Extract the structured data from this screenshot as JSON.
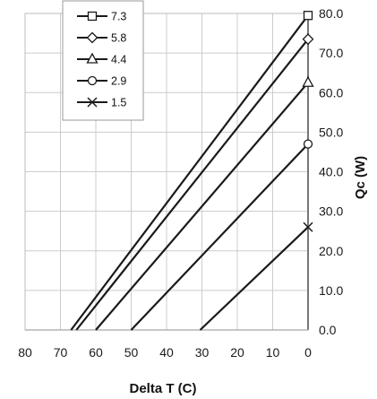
{
  "chart_data": {
    "type": "line",
    "xlabel": "Delta T (C)",
    "ylabel": "Qc (W)",
    "xlim": [
      80,
      0
    ],
    "ylim": [
      0,
      80
    ],
    "x_ticks": [
      "80",
      "70",
      "60",
      "50",
      "40",
      "30",
      "20",
      "10",
      "0"
    ],
    "y_ticks": [
      "0.0",
      "10.0",
      "20.0",
      "30.0",
      "40.0",
      "50.0",
      "60.0",
      "70.0",
      "80.0"
    ],
    "grid": true,
    "y_axis_side": "right",
    "legend_position": "top-left",
    "series": [
      {
        "name": "7.3",
        "marker": "square",
        "points": [
          [
            67,
            0
          ],
          [
            0,
            79.5
          ]
        ]
      },
      {
        "name": "5.8",
        "marker": "diamond",
        "points": [
          [
            65.5,
            0
          ],
          [
            0,
            73.5
          ]
        ]
      },
      {
        "name": "4.4",
        "marker": "triangle",
        "points": [
          [
            60,
            0
          ],
          [
            0,
            62.5
          ]
        ]
      },
      {
        "name": "2.9",
        "marker": "circle",
        "points": [
          [
            50,
            0
          ],
          [
            0,
            47
          ]
        ]
      },
      {
        "name": "1.5",
        "marker": "x",
        "points": [
          [
            30.5,
            0
          ],
          [
            0,
            26
          ]
        ]
      }
    ],
    "colors": {
      "lines": "#1a1a1a",
      "grid": "#cccccc"
    }
  }
}
